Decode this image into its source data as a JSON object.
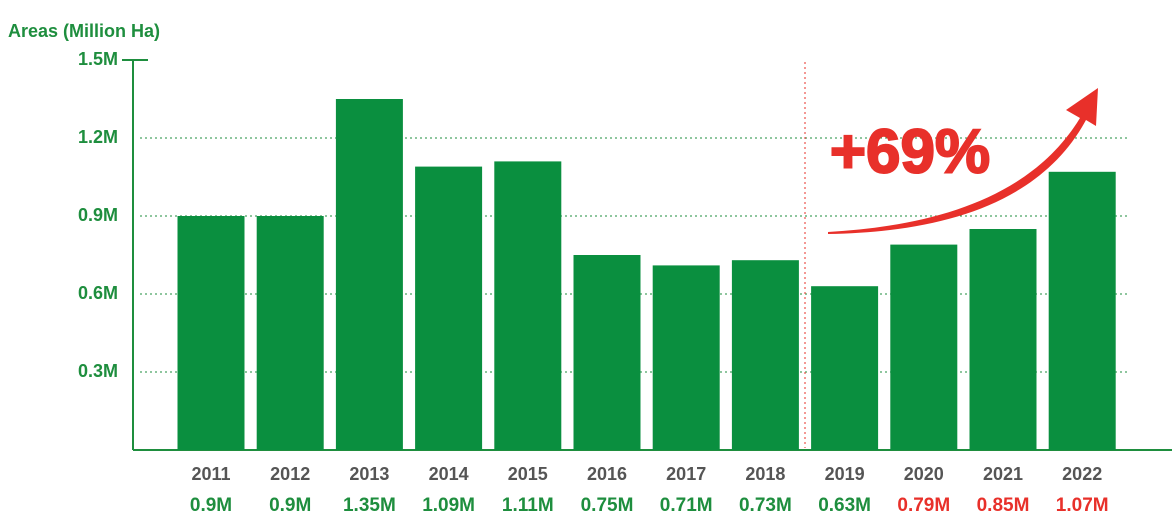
{
  "chart_data": {
    "type": "bar",
    "y_axis_label": "Areas (Million Ha)",
    "categories": [
      "2011",
      "2012",
      "2013",
      "2014",
      "2015",
      "2016",
      "2017",
      "2018",
      "2019",
      "2020",
      "2021",
      "2022"
    ],
    "values": [
      0.9,
      0.9,
      1.35,
      1.09,
      1.11,
      0.75,
      0.71,
      0.73,
      0.63,
      0.79,
      0.85,
      1.07
    ],
    "value_labels": [
      "0.9M",
      "0.9M",
      "1.35M",
      "1.09M",
      "1.11M",
      "0.75M",
      "0.71M",
      "0.73M",
      "0.63M",
      "0.79M",
      "0.85M",
      "1.07M"
    ],
    "value_label_colors": [
      "#1e8e3e",
      "#1e8e3e",
      "#1e8e3e",
      "#1e8e3e",
      "#1e8e3e",
      "#1e8e3e",
      "#1e8e3e",
      "#1e8e3e",
      "#1e8e3e",
      "#e8302a",
      "#e8302a",
      "#e8302a"
    ],
    "color": "#0a8f3f",
    "ylim": [
      0,
      1.5
    ],
    "yticks": [
      {
        "value": 0.3,
        "label": "0.3M"
      },
      {
        "value": 0.6,
        "label": "0.6M"
      },
      {
        "value": 0.9,
        "label": "0.9M"
      },
      {
        "value": 1.2,
        "label": "1.2M"
      },
      {
        "value": 1.5,
        "label": "1.5M"
      }
    ],
    "grid": true,
    "annotation": "+69%"
  }
}
